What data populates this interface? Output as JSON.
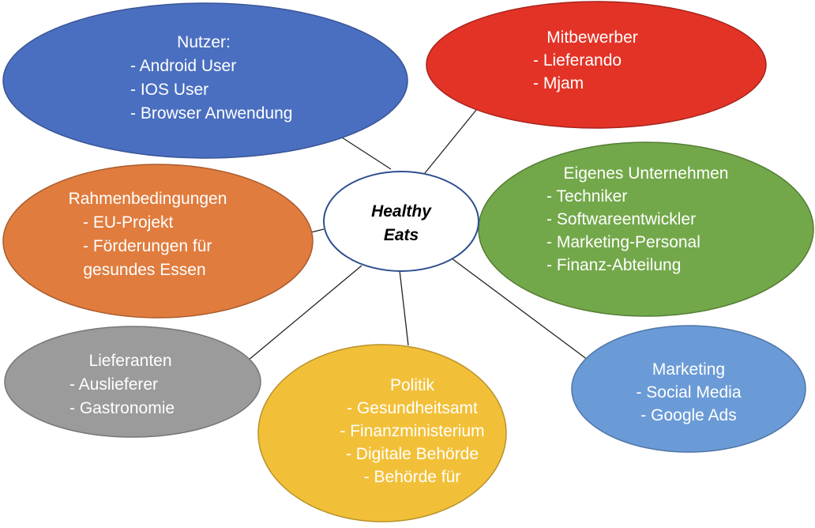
{
  "colors": {
    "background": "#ffffff",
    "connector": "#222222",
    "center_fill": "#ffffff",
    "center_stroke": "#2f4f8f",
    "text_light": "#ffffff",
    "text_dark": "#000000"
  },
  "center": {
    "lines": [
      "Healthy",
      "Eats"
    ]
  },
  "nodes": [
    {
      "id": "nutzer",
      "fill": "#4a6fc0",
      "stroke": "#3a5596",
      "lines": [
        "Nutzer:",
        "-    Android User",
        "-    IOS User",
        "-    Browser Anwendung"
      ]
    },
    {
      "id": "mitbewerber",
      "fill": "#e33327",
      "stroke": "#a8241c",
      "lines": [
        "Mitbewerber",
        "-    Lieferando",
        "-    Mjam"
      ]
    },
    {
      "id": "eigenes-unternehmen",
      "fill": "#73a84a",
      "stroke": "#557d36",
      "lines": [
        "Eigenes Unternehmen",
        "-    Techniker",
        "-    Softwareentwickler",
        "-    Marketing-Personal",
        "-    Finanz-Abteilung"
      ]
    },
    {
      "id": "rahmenbedingungen",
      "fill": "#e07c3e",
      "stroke": "#a85c2d",
      "lines": [
        "Rahmenbedingungen",
        "-    EU-Projekt",
        "-    Förderungen für",
        "gesundes Essen"
      ]
    },
    {
      "id": "lieferanten",
      "fill": "#9b9b9b",
      "stroke": "#767676",
      "lines": [
        "Lieferanten",
        "-    Auslieferer",
        "-    Gastronomie"
      ]
    },
    {
      "id": "politik",
      "fill": "#f2c038",
      "stroke": "#b8912a",
      "lines": [
        "Politik",
        "- Gesundheitsamt",
        "- Finanzministerium",
        "- Digitale Behörde",
        "- Behörde für"
      ]
    },
    {
      "id": "marketing",
      "fill": "#6b9bd6",
      "stroke": "#4f76a8",
      "lines": [
        "Marketing",
        "- Social Media",
        "- Google Ads"
      ]
    }
  ]
}
